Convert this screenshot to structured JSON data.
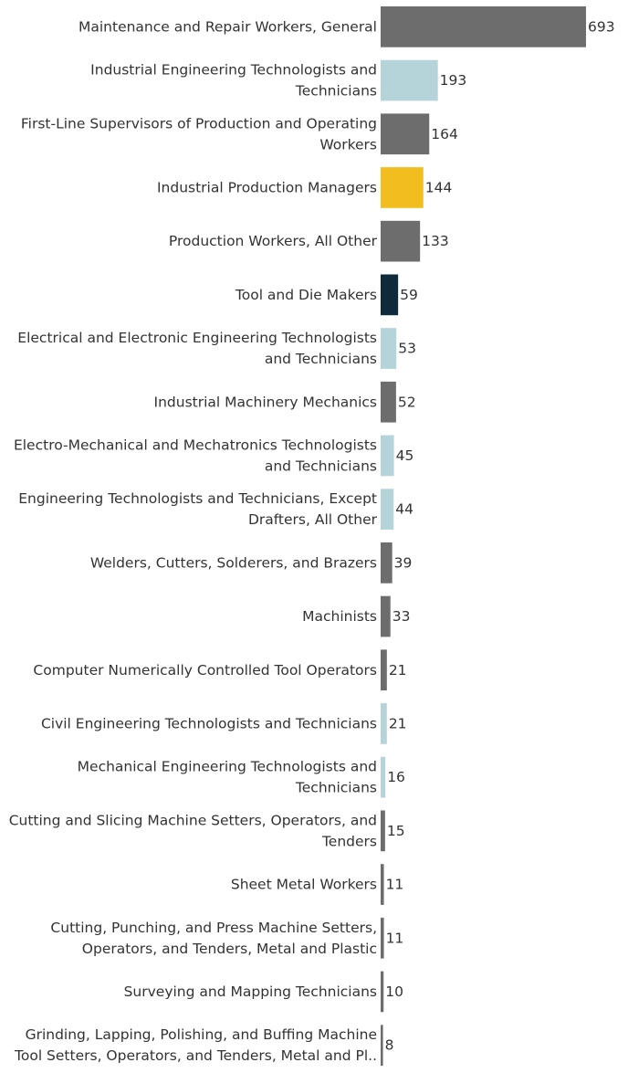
{
  "colors": {
    "dark_gray": "#6d6d6d",
    "light_blue": "#b5d4da",
    "gold": "#f2bd1f",
    "navy": "#0f2a3a",
    "text": "#333333",
    "axis": "#6d6d6d"
  },
  "chart_data": {
    "type": "bar",
    "orientation": "horizontal",
    "title": "",
    "xlabel": "",
    "ylabel": "",
    "xlim": [
      0,
      693
    ],
    "grid": false,
    "legend": "none",
    "bars": [
      {
        "label": [
          "Maintenance and Repair Workers, General"
        ],
        "value": 693,
        "value_label": "693",
        "color": "dark_gray"
      },
      {
        "label": [
          "Industrial Engineering Technologists and",
          "Technicians"
        ],
        "value": 193,
        "value_label": "193",
        "color": "light_blue"
      },
      {
        "label": [
          "First-Line Supervisors of Production and Operating",
          "Workers"
        ],
        "value": 164,
        "value_label": "164",
        "color": "dark_gray"
      },
      {
        "label": [
          "Industrial Production Managers"
        ],
        "value": 144,
        "value_label": "144",
        "color": "gold"
      },
      {
        "label": [
          "Production Workers, All Other"
        ],
        "value": 133,
        "value_label": "133",
        "color": "dark_gray"
      },
      {
        "label": [
          "Tool and Die Makers"
        ],
        "value": 59,
        "value_label": "59",
        "color": "navy"
      },
      {
        "label": [
          "Electrical and Electronic Engineering Technologists",
          "and Technicians"
        ],
        "value": 53,
        "value_label": "53",
        "color": "light_blue"
      },
      {
        "label": [
          "Industrial Machinery Mechanics"
        ],
        "value": 52,
        "value_label": "52",
        "color": "dark_gray"
      },
      {
        "label": [
          "Electro-Mechanical and Mechatronics Technologists",
          "and Technicians"
        ],
        "value": 45,
        "value_label": "45",
        "color": "light_blue"
      },
      {
        "label": [
          "Engineering Technologists and Technicians, Except",
          "Drafters, All Other"
        ],
        "value": 44,
        "value_label": "44",
        "color": "light_blue"
      },
      {
        "label": [
          "Welders, Cutters, Solderers, and Brazers"
        ],
        "value": 39,
        "value_label": "39",
        "color": "dark_gray"
      },
      {
        "label": [
          "Machinists"
        ],
        "value": 33,
        "value_label": "33",
        "color": "dark_gray"
      },
      {
        "label": [
          "Computer Numerically Controlled Tool Operators"
        ],
        "value": 21,
        "value_label": "21",
        "color": "dark_gray"
      },
      {
        "label": [
          "Civil Engineering Technologists and Technicians"
        ],
        "value": 21,
        "value_label": "21",
        "color": "light_blue"
      },
      {
        "label": [
          "Mechanical Engineering Technologists and",
          "Technicians"
        ],
        "value": 16,
        "value_label": "16",
        "color": "light_blue"
      },
      {
        "label": [
          "Cutting and Slicing Machine Setters, Operators, and",
          "Tenders"
        ],
        "value": 15,
        "value_label": "15",
        "color": "dark_gray"
      },
      {
        "label": [
          "Sheet Metal Workers"
        ],
        "value": 11,
        "value_label": "11",
        "color": "dark_gray"
      },
      {
        "label": [
          "Cutting, Punching, and Press Machine Setters,",
          "Operators, and Tenders, Metal and Plastic"
        ],
        "value": 11,
        "value_label": "11",
        "color": "dark_gray"
      },
      {
        "label": [
          "Surveying and Mapping Technicians"
        ],
        "value": 10,
        "value_label": "10",
        "color": "dark_gray"
      },
      {
        "label": [
          "Grinding, Lapping, Polishing, and Buffing Machine",
          "Tool Setters, Operators, and Tenders, Metal and Pl.."
        ],
        "value": 8,
        "value_label": "8",
        "color": "dark_gray"
      }
    ]
  }
}
